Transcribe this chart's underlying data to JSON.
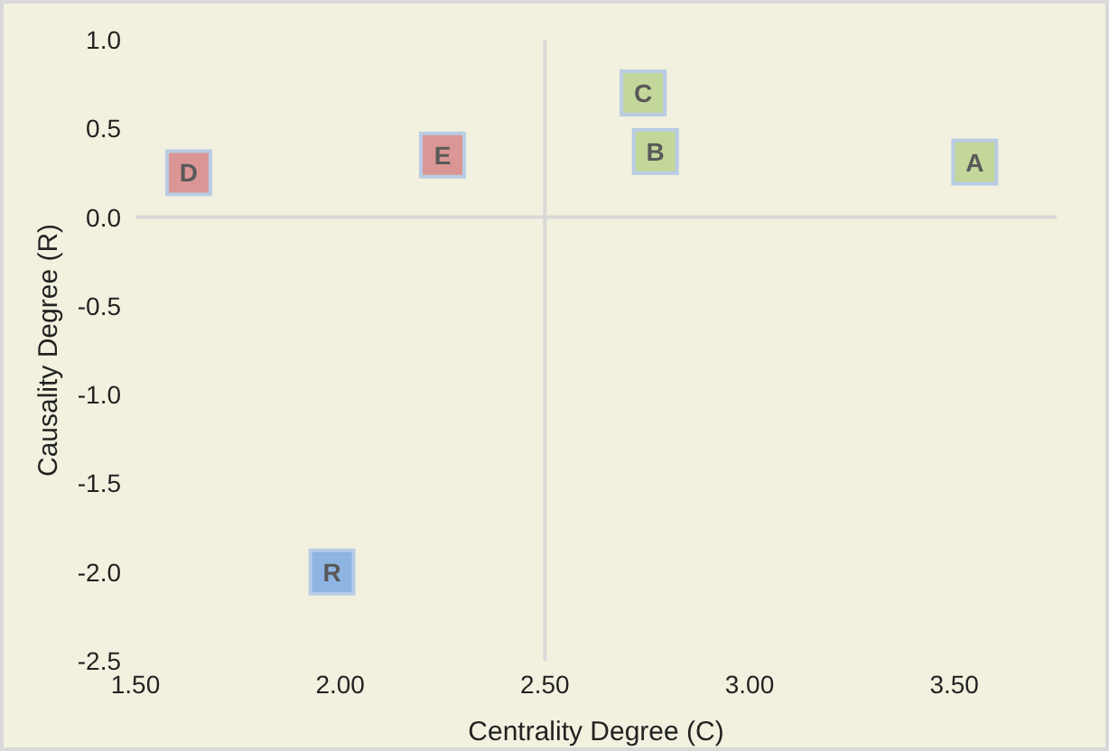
{
  "chart_data": {
    "type": "scatter",
    "xlabel": "Centrality  Degree  (C)",
    "ylabel": "Causality  Degree  (R)",
    "xlim": [
      1.5,
      3.75
    ],
    "xticks": [
      {
        "value": 1.5,
        "label": "1.50"
      },
      {
        "value": 2,
        "label": "2.00"
      },
      {
        "value": 2.5,
        "label": "2.50"
      },
      {
        "value": 3,
        "label": "3.00"
      },
      {
        "value": 3.5,
        "label": "3.50"
      }
    ],
    "ylim": [
      -2.5,
      1
    ],
    "yticks": [
      {
        "value": -2.5,
        "label": "-2.5"
      },
      {
        "value": -2,
        "label": "-2.0"
      },
      {
        "value": -1.5,
        "label": "-1.5"
      },
      {
        "value": -1,
        "label": "-1.0"
      },
      {
        "value": -0.5,
        "label": "-0.5"
      },
      {
        "value": 0,
        "label": "0.0"
      },
      {
        "value": 0.5,
        "label": "0.5"
      },
      {
        "value": 1,
        "label": "1.0"
      }
    ],
    "grid": false,
    "legend": false,
    "marker": "square",
    "ref_lines": [
      {
        "axis": "y",
        "value": 0,
        "color": "#d9d9d9"
      },
      {
        "axis": "x",
        "value": 2.5,
        "color": "#d9d9d9"
      }
    ],
    "series": [
      {
        "name": "A",
        "color": "#c4d79b",
        "x": [
          3.55
        ],
        "values": [
          0.31
        ]
      },
      {
        "name": "B",
        "color": "#c4d79b",
        "x": [
          2.77
        ],
        "values": [
          0.37
        ]
      },
      {
        "name": "C",
        "color": "#c4d79b",
        "x": [
          2.74
        ],
        "values": [
          0.7
        ]
      },
      {
        "name": "D",
        "color": "#da9694",
        "x": [
          1.63
        ],
        "values": [
          0.25
        ]
      },
      {
        "name": "E",
        "color": "#da9694",
        "x": [
          2.25
        ],
        "values": [
          0.35
        ]
      },
      {
        "name": "R",
        "color": "#8db4e2",
        "x": [
          1.98
        ],
        "values": [
          -2.0
        ]
      }
    ]
  }
}
